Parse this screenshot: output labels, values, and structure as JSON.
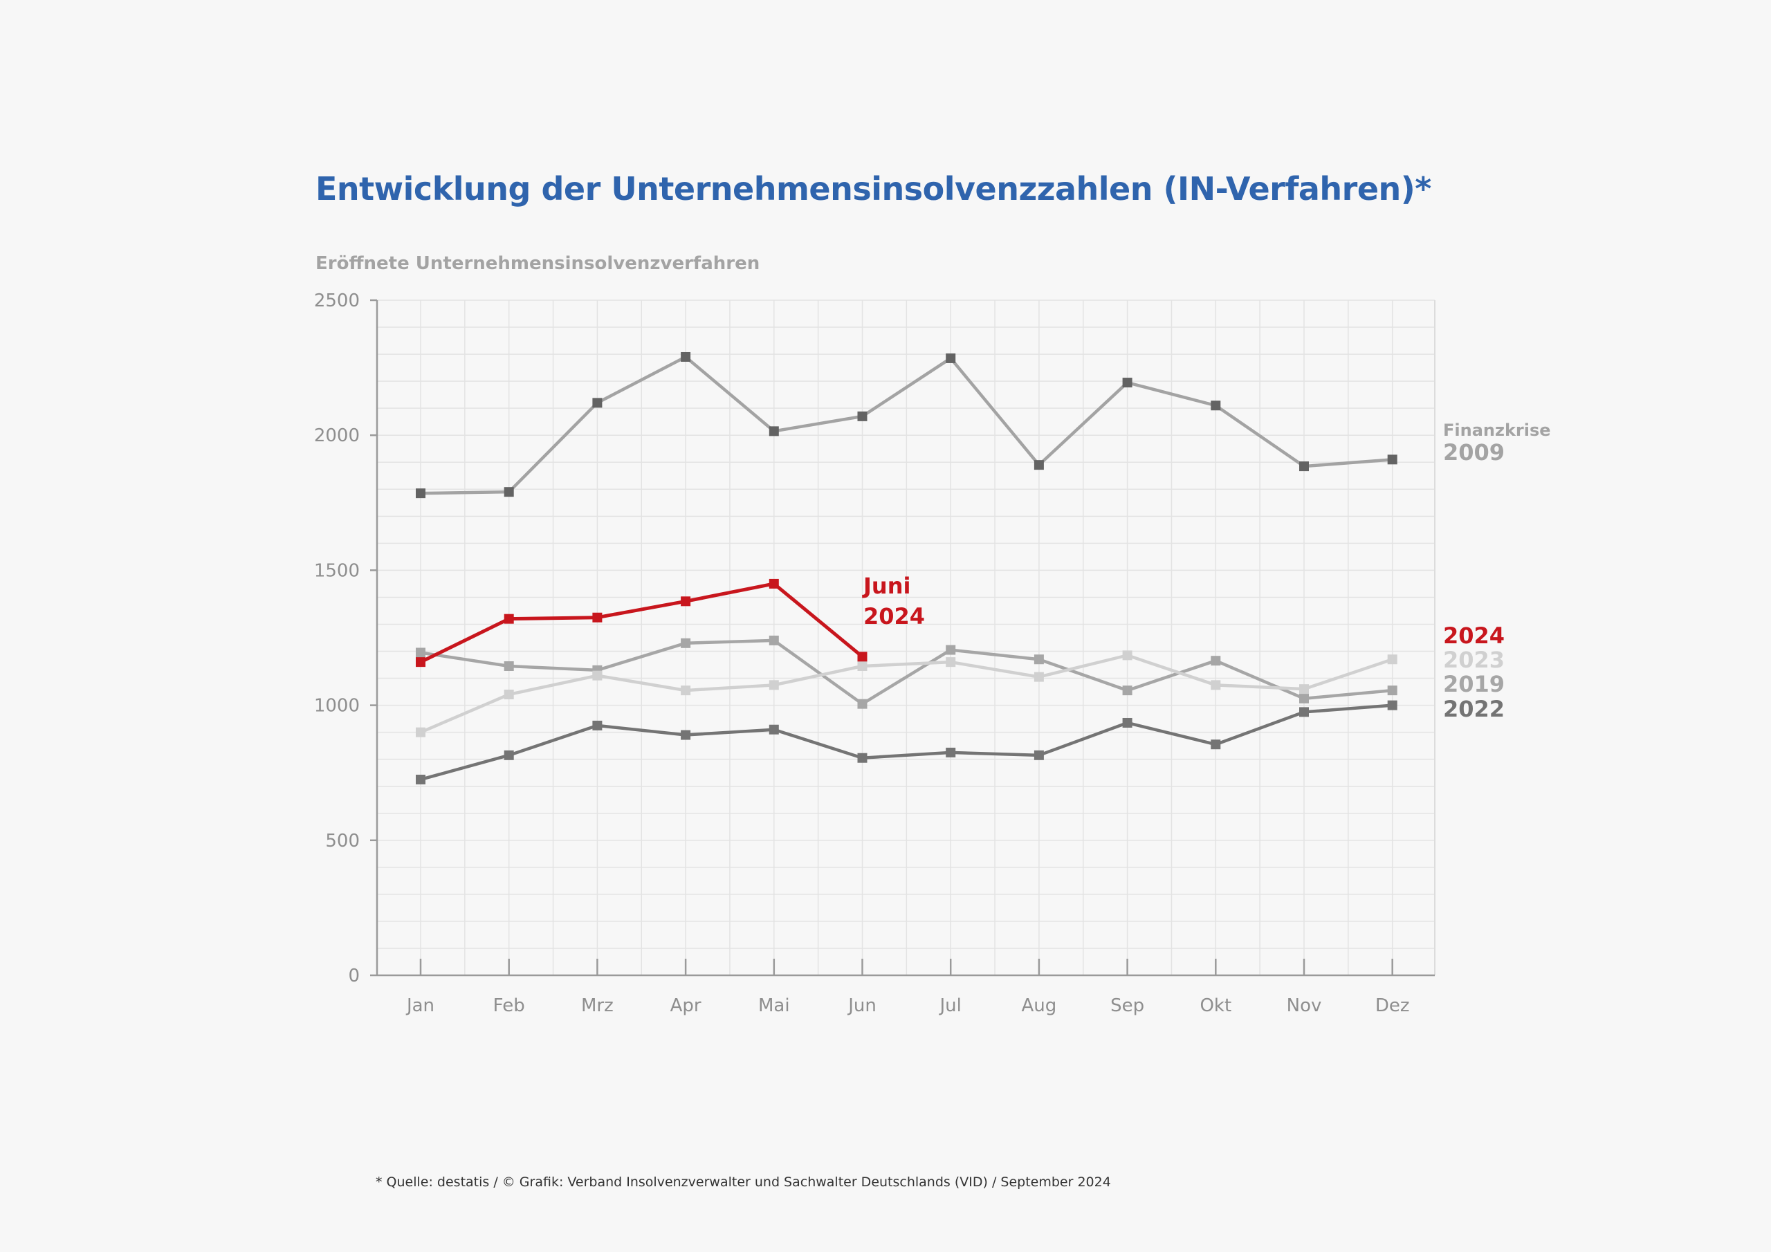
{
  "chart_data": {
    "type": "line",
    "title": "Entwicklung der Unternehmensinsolvenzzahlen (IN-Verfahren)*",
    "ylabel": "Eröffnete Unternehmensinsolvenzverfahren",
    "xlabel": "",
    "categories": [
      "Jan",
      "Feb",
      "Mrz",
      "Apr",
      "Mai",
      "Jun",
      "Jul",
      "Aug",
      "Sep",
      "Okt",
      "Nov",
      "Dez"
    ],
    "ylim": [
      0,
      2500
    ],
    "yticks": [
      0,
      500,
      1000,
      1500,
      2000,
      2500
    ],
    "grid": true,
    "series": [
      {
        "name": "2009",
        "color": "#a3a3a3",
        "marker_color": "#636363",
        "values": [
          1785,
          1790,
          2120,
          2290,
          2015,
          2070,
          2285,
          1890,
          2195,
          2110,
          1885,
          1910
        ]
      },
      {
        "name": "2019",
        "color": "#a6a6a6",
        "marker_color": "#a6a6a6",
        "values": [
          1195,
          1145,
          1130,
          1230,
          1240,
          1005,
          1205,
          1170,
          1055,
          1165,
          1025,
          1055
        ]
      },
      {
        "name": "2023",
        "color": "#d0d0d0",
        "marker_color": "#d0d0d0",
        "values": [
          900,
          1040,
          1110,
          1055,
          1075,
          1145,
          1160,
          1105,
          1185,
          1075,
          1060,
          1170
        ]
      },
      {
        "name": "2022",
        "color": "#747474",
        "marker_color": "#747474",
        "values": [
          725,
          815,
          925,
          890,
          910,
          805,
          825,
          815,
          935,
          855,
          975,
          1000
        ]
      },
      {
        "name": "2024",
        "color": "#c8161d",
        "marker_color": "#c8161d",
        "values": [
          1160,
          1320,
          1325,
          1385,
          1450,
          1180,
          null,
          null,
          null,
          null,
          null,
          null
        ]
      }
    ],
    "annotations": [
      {
        "text": "Finanzkrise",
        "series": "2009"
      },
      {
        "text": "Juni\n2024",
        "series": "2024"
      }
    ],
    "source": "* Quelle: destatis / © Grafik: Verband Insolvenzverwalter und Sachwalter Deutschlands (VID) / September 2024"
  }
}
